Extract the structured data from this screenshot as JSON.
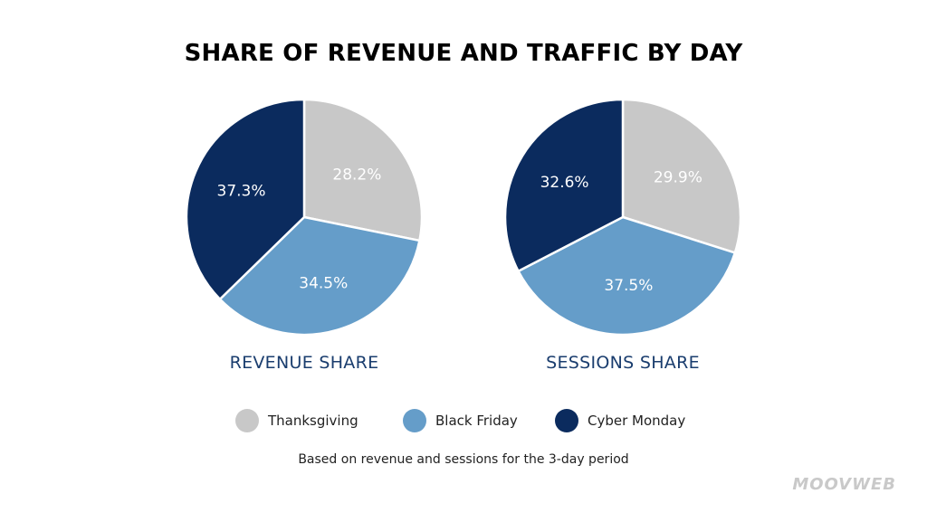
{
  "title": "SHARE OF REVENUE AND TRAFFIC BY DAY",
  "chart_data": [
    {
      "type": "pie",
      "title": "REVENUE SHARE",
      "categories": [
        "Thanksgiving",
        "Black Friday",
        "Cyber Monday"
      ],
      "values": [
        28.2,
        34.5,
        37.3
      ],
      "labels": [
        "28.2%",
        "34.5%",
        "37.3%"
      ],
      "colors": [
        "#c8c8c8",
        "#659dc9",
        "#0b2b5e"
      ]
    },
    {
      "type": "pie",
      "title": "SESSIONS SHARE",
      "categories": [
        "Thanksgiving",
        "Black Friday",
        "Cyber Monday"
      ],
      "values": [
        29.9,
        37.5,
        32.6
      ],
      "labels": [
        "29.9%",
        "37.5%",
        "32.6%"
      ],
      "colors": [
        "#c8c8c8",
        "#659dc9",
        "#0b2b5e"
      ]
    }
  ],
  "legend": [
    {
      "label": "Thanksgiving",
      "color": "#c8c8c8"
    },
    {
      "label": "Black Friday",
      "color": "#659dc9"
    },
    {
      "label": "Cyber Monday",
      "color": "#0b2b5e"
    }
  ],
  "footnote": "Based on revenue and sessions for the 3-day period",
  "logo": "MOOVWEB"
}
